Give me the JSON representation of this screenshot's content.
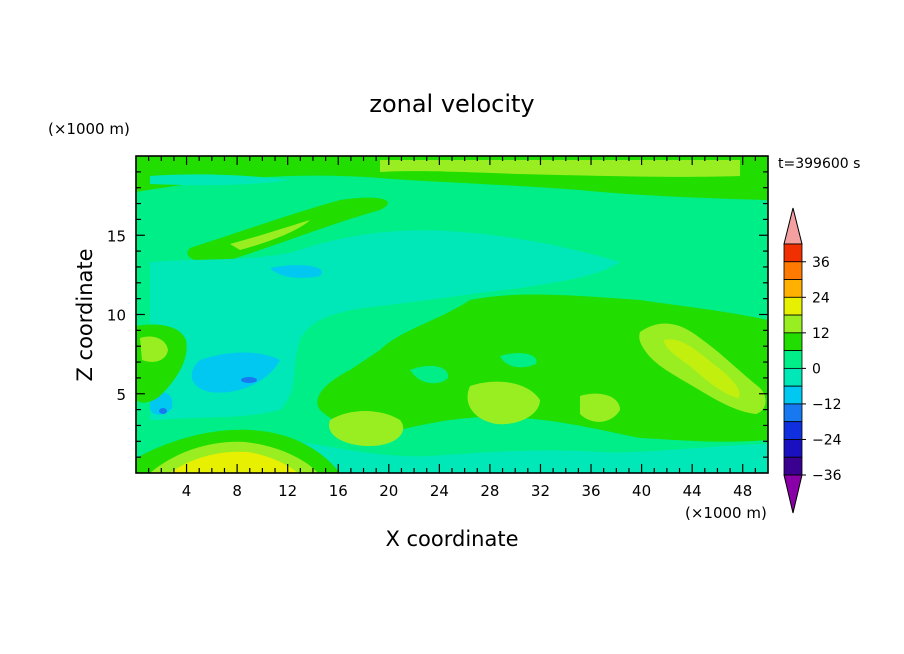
{
  "chart_data": {
    "type": "heatmap",
    "title": "zonal velocity",
    "xlabel": "X coordinate",
    "ylabel": "Z coordinate",
    "x_unit": "(×1000 m)",
    "y_unit": "(×1000 m)",
    "annotation": "t=399600 s",
    "xlim": [
      0,
      50
    ],
    "ylim": [
      0,
      20
    ],
    "x_ticks": [
      4,
      8,
      12,
      16,
      20,
      24,
      28,
      32,
      36,
      40,
      44,
      48
    ],
    "y_ticks": [
      5,
      10,
      15
    ],
    "colorbar": {
      "levels": [
        -42,
        -36,
        -30,
        -24,
        -18,
        -12,
        -6,
        0,
        6,
        12,
        18,
        24,
        30,
        36,
        42
      ],
      "tick_labels": [
        "36",
        "24",
        "12",
        "0",
        "−12",
        "−24",
        "−36"
      ],
      "tick_values": [
        36,
        24,
        12,
        0,
        -12,
        -24,
        -36
      ],
      "colors": {
        "lt_-36": "#8a00a8",
        "-36": "#3a0090",
        "-30": "#1a10c0",
        "-24": "#1030e0",
        "-18": "#1878f0",
        "-12": "#00c8f0",
        "-6": "#00e8b8",
        "0": "#00ee88",
        "6": "#22dd00",
        "12": "#99ee22",
        "18": "#e6f000",
        "24": "#ffb000",
        "30": "#ff7a00",
        "36": "#f03000",
        "gt_42": "#f4a0a0"
      }
    },
    "field_description_values": {
      "dominant_range": [
        -12,
        12
      ],
      "max_near": {
        "x": 8,
        "z": 1,
        "value": 18
      },
      "min_near": {
        "x": 9,
        "z": 5.8,
        "value": -15
      }
    }
  }
}
